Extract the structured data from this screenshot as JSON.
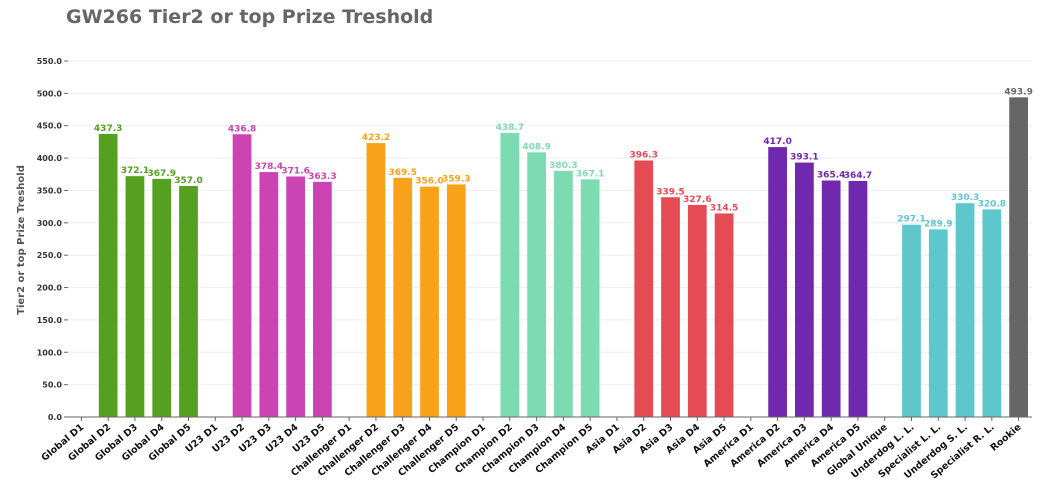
{
  "chart_data": {
    "type": "bar",
    "title": "GW266 Tier2 or top Prize Treshold",
    "xlabel": "",
    "ylabel": "Tier2 or top Prize Treshold",
    "ylim": [
      0,
      550
    ],
    "yticks": [
      "0.0",
      "50.0",
      "100.0",
      "150.0",
      "200.0",
      "250.0",
      "300.0",
      "350.0",
      "400.0",
      "450.0",
      "500.0",
      "550.0"
    ],
    "grid": true,
    "categories": [
      "Global D1",
      "Global D2",
      "Global D3",
      "Global D4",
      "Global D5",
      "U23 D1",
      "U23 D2",
      "U23 D3",
      "U23 D4",
      "U23 D5",
      "Challenger D1",
      "Challenger D2",
      "Challenger D3",
      "Challenger D4",
      "Challenger D5",
      "Champion D1",
      "Champion D2",
      "Champion D3",
      "Champion D4",
      "Champion D5",
      "Asia D1",
      "Asia D2",
      "Asia D3",
      "Asia D4",
      "Asia D5",
      "America D1",
      "America D2",
      "America D3",
      "America D4",
      "America D5",
      "Global Unique",
      "Underdog L. L.",
      "Specialist L. L.",
      "Underdog S. L.",
      "Specialist R. L.",
      "Rookie"
    ],
    "values": [
      null,
      437.3,
      372.1,
      367.9,
      357.0,
      null,
      436.8,
      378.4,
      371.6,
      363.3,
      null,
      423.2,
      369.5,
      356.0,
      359.3,
      null,
      438.7,
      408.9,
      380.3,
      367.1,
      null,
      396.3,
      339.5,
      327.6,
      314.5,
      null,
      417.0,
      393.1,
      365.4,
      364.7,
      null,
      297.1,
      289.9,
      330.3,
      320.8,
      493.9
    ],
    "value_labels": [
      "",
      "437.3",
      "372.1",
      "367.9",
      "357.0",
      "",
      "436.8",
      "378.4",
      "371.6",
      "363.3",
      "",
      "423.2",
      "369.5",
      "356.0",
      "359.3",
      "",
      "438.7",
      "408.9",
      "380.3",
      "367.1",
      "",
      "396.3",
      "339.5",
      "327.6",
      "314.5",
      "",
      "417.0",
      "393.1",
      "365.4",
      "364.7",
      "",
      "297.1",
      "289.9",
      "330.3",
      "320.8",
      "493.9"
    ],
    "colors": [
      "#56a021",
      "#56a021",
      "#56a021",
      "#56a021",
      "#56a021",
      "#cc44b4",
      "#cc44b4",
      "#cc44b4",
      "#cc44b4",
      "#cc44b4",
      "#f8a21a",
      "#f8a21a",
      "#f8a21a",
      "#f8a21a",
      "#f8a21a",
      "#7ddbb4",
      "#7ddbb4",
      "#7ddbb4",
      "#7ddbb4",
      "#7ddbb4",
      "#e54b55",
      "#e54b55",
      "#e54b55",
      "#e54b55",
      "#e54b55",
      "#7028ae",
      "#7028ae",
      "#7028ae",
      "#7028ae",
      "#7028ae",
      "#5ec7cc",
      "#5ec7cc",
      "#5ec7cc",
      "#5ec7cc",
      "#5ec7cc",
      "#666666"
    ]
  }
}
